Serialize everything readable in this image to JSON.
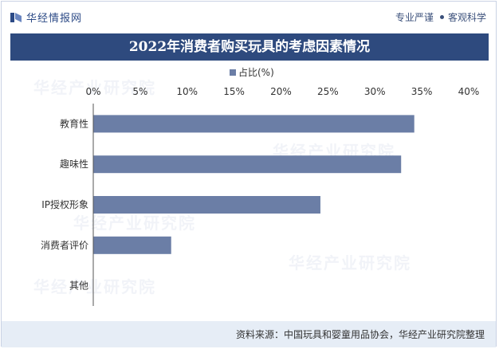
{
  "header": {
    "brand": "华经情报网",
    "slogan_left": "专业严谨",
    "slogan_right": "客观科学",
    "brand_color": "#2c4a86"
  },
  "title": "2022年消费者购买玩具的考虑因素情况",
  "watermark": "华经产业研究院",
  "source": "资料来源：中国玩具和婴童用品协会，华经产业研究院整理",
  "chart_data": {
    "type": "bar",
    "orientation": "horizontal",
    "title": "2022年消费者购买玩具的考虑因素情况",
    "categories": [
      "教育性",
      "趣味性",
      "IP授权形象",
      "消费者评价",
      "其他"
    ],
    "series": [
      {
        "name": "占比(%)",
        "values": [
          34.2,
          32.8,
          24.2,
          8.3,
          0
        ],
        "color": "#6b7ea6"
      }
    ],
    "xlim": [
      0,
      40
    ],
    "xticks": [
      0,
      5,
      10,
      15,
      20,
      25,
      30,
      35,
      40
    ],
    "xtick_labels": [
      "0%",
      "5%",
      "10%",
      "15%",
      "20%",
      "25%",
      "30%",
      "35%",
      "40%"
    ],
    "legend_position": "top-center",
    "grid": false
  }
}
